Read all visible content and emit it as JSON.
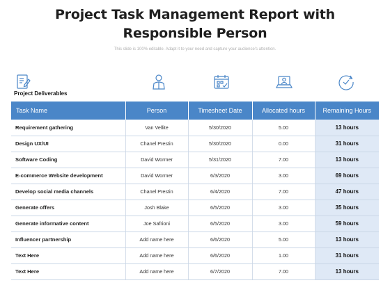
{
  "title": {
    "line1": "Project Task Management Report with",
    "line2": "Responsible Person",
    "subtitle": "This slide is 100% editable. Adapt it to your need and capture your audience's attention."
  },
  "icons": [
    "document-edit-icon",
    "person-icon",
    "calendar-icon",
    "laptop-user-icon",
    "clock-check-icon"
  ],
  "accent_color": "#4a86c8",
  "section_label": "Project Deliverables",
  "table": {
    "headers": [
      "Task Name",
      "Person",
      "Timesheet Date",
      "Allocated hours",
      "Remaining Hours"
    ],
    "rows": [
      {
        "task": "Requirement gathering",
        "person": "Van Vellite",
        "date": "5/30/2020",
        "allocated": "5.00",
        "remaining": "13 hours"
      },
      {
        "task": "Design UX/UI",
        "person": "Chanel Prestin",
        "date": "5/30/2020",
        "allocated": "0.00",
        "remaining": "31 hours"
      },
      {
        "task": "Software Coding",
        "person": "David Wormer",
        "date": "5/31/2020",
        "allocated": "7.00",
        "remaining": "13 hours"
      },
      {
        "task": "E-commerce Website development",
        "person": "David Wormer",
        "date": "6/3/2020",
        "allocated": "3.00",
        "remaining": "69 hours"
      },
      {
        "task": "Develop social media channels",
        "person": "Chanel Prestin",
        "date": "6/4/2020",
        "allocated": "7.00",
        "remaining": "47 hours"
      },
      {
        "task": "Generate offers",
        "person": "Josh Blake",
        "date": "6/5/2020",
        "allocated": "3.00",
        "remaining": "35 hours"
      },
      {
        "task": "Generate informative content",
        "person": "Joe Safrioni",
        "date": "6/5/2020",
        "allocated": "3.00",
        "remaining": "59 hours"
      },
      {
        "task": "Influencer partnership",
        "person": "Add name here",
        "date": "6/6/2020",
        "allocated": "5.00",
        "remaining": "13 hours"
      },
      {
        "task": "Text Here",
        "person": "Add name here",
        "date": "6/6/2020",
        "allocated": "1.00",
        "remaining": "31 hours"
      },
      {
        "task": "Text Here",
        "person": "Add name here",
        "date": "6/7/2020",
        "allocated": "7.00",
        "remaining": "13 hours"
      }
    ]
  }
}
